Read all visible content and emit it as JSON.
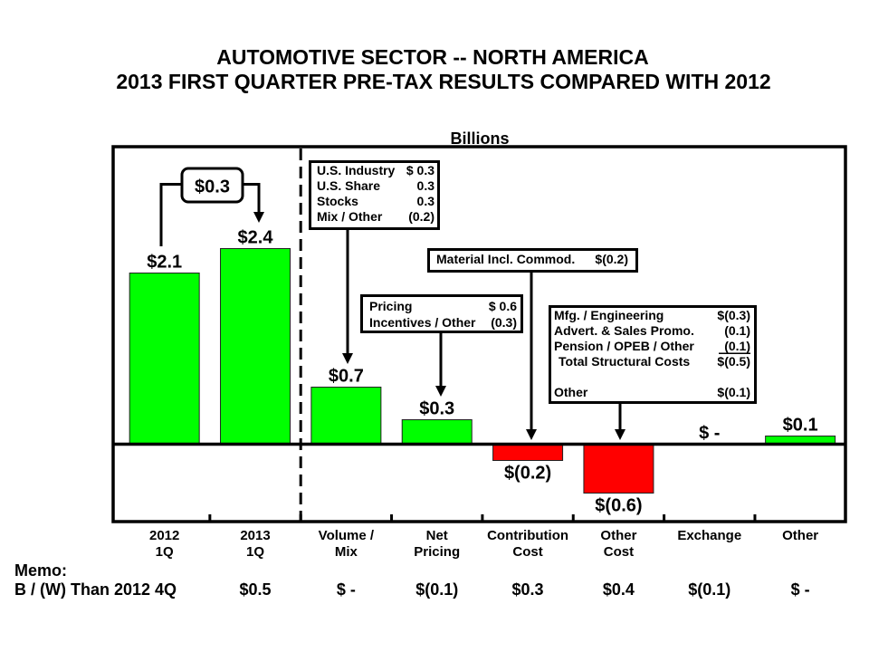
{
  "chart_data": {
    "type": "bar",
    "title": [
      "AUTOMOTIVE SECTOR -- NORTH AMERICA",
      "2013 FIRST QUARTER PRE-TAX RESULTS COMPARED WITH 2012"
    ],
    "ylabel": "Billions",
    "xlabel": "",
    "categories": [
      [
        "2012",
        "1Q"
      ],
      [
        "2013",
        "1Q"
      ],
      [
        "Volume /",
        "Mix"
      ],
      [
        "Net",
        "Pricing"
      ],
      [
        "Contribution",
        "Cost"
      ],
      [
        "Other",
        "Cost"
      ],
      [
        "Exchange"
      ],
      [
        "Other"
      ]
    ],
    "values": [
      2.1,
      2.4,
      0.7,
      0.3,
      -0.2,
      -0.6,
      0,
      0.1
    ],
    "value_labels": [
      "$2.1",
      "$2.4",
      "$0.7",
      "$0.3",
      "$(0.2)",
      "$(0.6)",
      "$ -",
      "$0.1"
    ],
    "ylim": [
      -0.95,
      3.65
    ],
    "grid": false,
    "legend": "none",
    "divider_after_category": 1,
    "bridge": {
      "from_category": 0,
      "to_category": 1,
      "label": "$0.3"
    },
    "callouts": {
      "volume_mix": {
        "rows": [
          {
            "label": "U.S. Industry",
            "value": "$ 0.3"
          },
          {
            "label": "U.S. Share",
            "value": "0.3"
          },
          {
            "label": "Stocks",
            "value": "0.3"
          },
          {
            "label": "Mix / Other",
            "value": "(0.2)"
          }
        ]
      },
      "net_pricing": {
        "rows": [
          {
            "label": "Pricing",
            "value": "$ 0.6"
          },
          {
            "label": "Incentives / Other",
            "value": "(0.3)"
          }
        ]
      },
      "contribution_cost": {
        "rows": [
          {
            "label": "Material Incl. Commod.",
            "value": "$(0.2)"
          }
        ]
      },
      "other_cost": {
        "rows": [
          {
            "label": "Mfg. / Engineering",
            "value": "$(0.3)"
          },
          {
            "label": "Advert. & Sales Promo.",
            "value": "(0.1)"
          },
          {
            "label": "Pension / OPEB / Other",
            "value": "(0.1)"
          },
          {
            "label": "Total Structural Costs",
            "value": "$(0.5)"
          },
          {
            "label": "Other",
            "value": "$(0.1)"
          }
        ]
      }
    },
    "colors": {
      "positive": "#00FF00",
      "negative": "#FF0000",
      "bar_outline": "#222222"
    }
  },
  "memo": {
    "title": "Memo:",
    "row_label": "B / (W) Than 2012 4Q",
    "values": [
      "$0.5",
      "$ -",
      "$(0.1)",
      "$0.3",
      "$0.4",
      "$(0.1)",
      "$ -"
    ]
  }
}
